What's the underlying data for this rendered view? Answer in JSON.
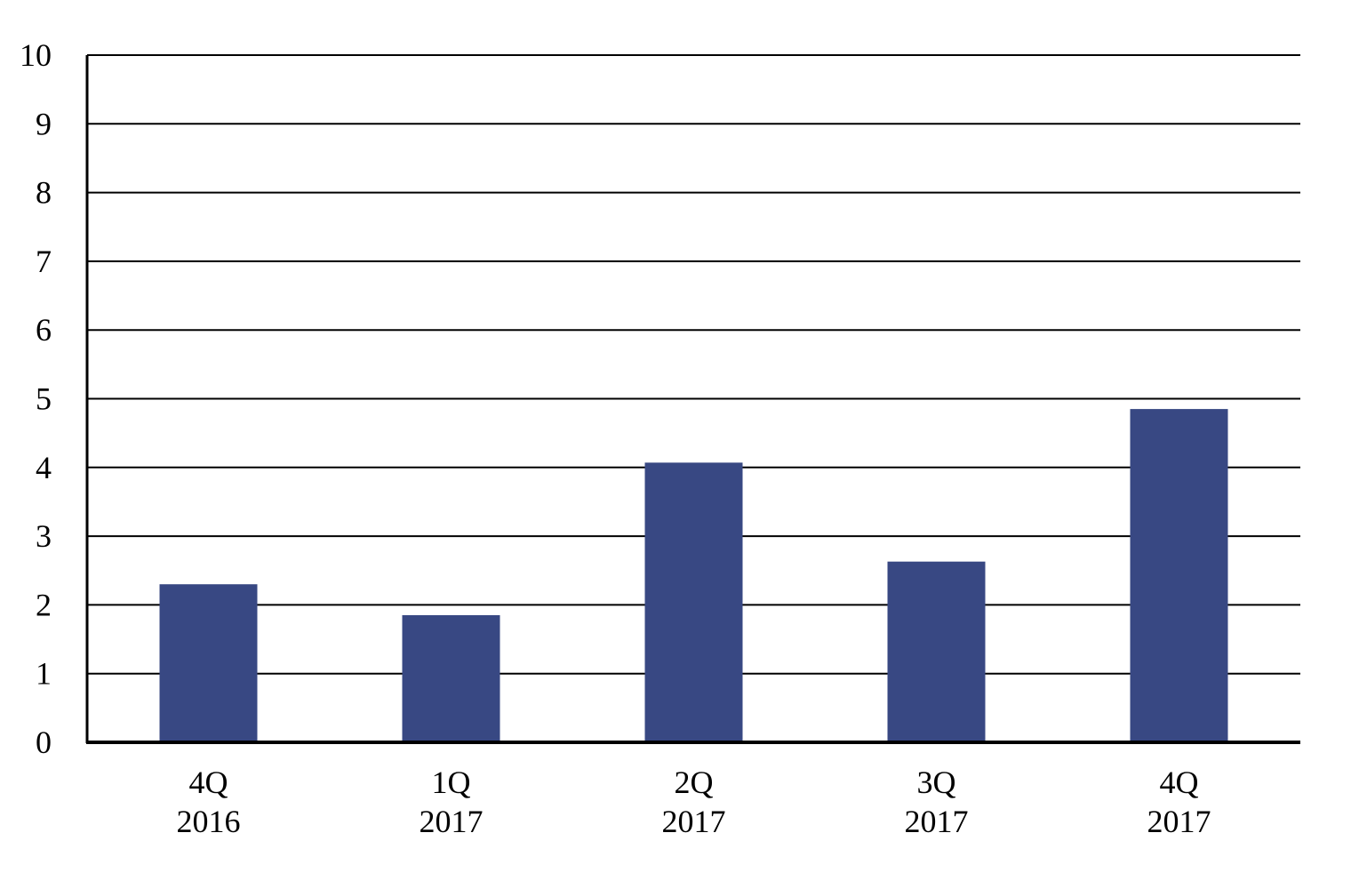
{
  "chart_data": {
    "type": "bar",
    "categories": [
      [
        "4Q",
        "2016"
      ],
      [
        "1Q",
        "2017"
      ],
      [
        "2Q",
        "2017"
      ],
      [
        "3Q",
        "2017"
      ],
      [
        "4Q",
        "2017"
      ]
    ],
    "values": [
      2.3,
      1.85,
      4.07,
      2.63,
      4.85
    ],
    "ylim": [
      0,
      10
    ],
    "yticks": [
      "0",
      "1",
      "2",
      "3",
      "4",
      "5",
      "6",
      "7",
      "8",
      "9",
      "10"
    ],
    "title": "",
    "xlabel": "",
    "ylabel": "",
    "grid": true,
    "legend": "none",
    "colors": {
      "bar": "#384883",
      "grid": "#000000",
      "axis": "#000000"
    }
  }
}
